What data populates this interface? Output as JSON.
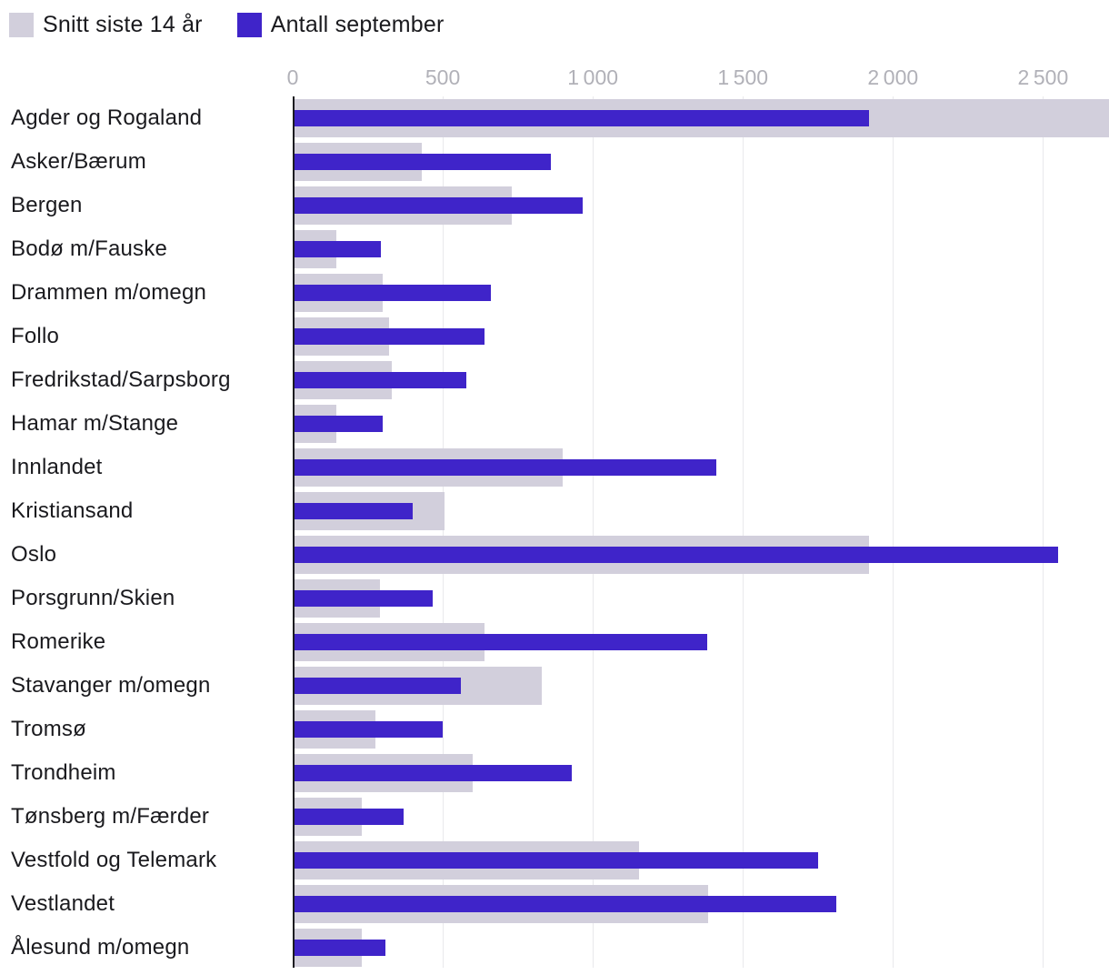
{
  "legend": {
    "avg_label": "Snitt siste 14 år",
    "september_label": "Antall september"
  },
  "chart_data": {
    "type": "bar",
    "orientation": "horizontal",
    "title": "",
    "xlabel": "",
    "ylabel": "",
    "xlim": [
      0,
      2720
    ],
    "grid": true,
    "legend_position": "top-left",
    "x_ticks": [
      {
        "value": 0,
        "label": "0"
      },
      {
        "value": 500,
        "label": "500"
      },
      {
        "value": 1000,
        "label": "1 000"
      },
      {
        "value": 1500,
        "label": "1 500"
      },
      {
        "value": 2000,
        "label": "2 000"
      },
      {
        "value": 2500,
        "label": "2 500"
      }
    ],
    "categories": [
      "Agder og Rogaland",
      "Asker/Bærum",
      "Bergen",
      "Bodø m/Fauske",
      "Drammen m/omegn",
      "Follo",
      "Fredrikstad/Sarpsborg",
      "Hamar m/Stange",
      "Innlandet",
      "Kristiansand",
      "Oslo",
      "Porsgrunn/Skien",
      "Romerike",
      "Stavanger m/omegn",
      "Tromsø",
      "Trondheim",
      "Tønsberg m/Færder",
      "Vestfold og Telemark",
      "Vestlandet",
      "Ålesund m/omegn"
    ],
    "series": [
      {
        "name": "Snitt siste 14 år",
        "color": "#d2cfdc",
        "values": [
          2730,
          430,
          730,
          145,
          300,
          320,
          330,
          145,
          900,
          505,
          1920,
          290,
          640,
          830,
          275,
          600,
          230,
          1155,
          1385,
          230
        ]
      },
      {
        "name": "Antall september",
        "color": "#3f24c9",
        "values": [
          1920,
          860,
          965,
          295,
          660,
          640,
          580,
          300,
          1410,
          400,
          2550,
          465,
          1380,
          560,
          500,
          930,
          370,
          1750,
          1810,
          310
        ]
      }
    ],
    "colors": {
      "axis_line": "#1b1b20",
      "gridline": "#e9e9ec",
      "tick_text": "#b1b1b8",
      "label_text": "#1a1a1e"
    }
  }
}
